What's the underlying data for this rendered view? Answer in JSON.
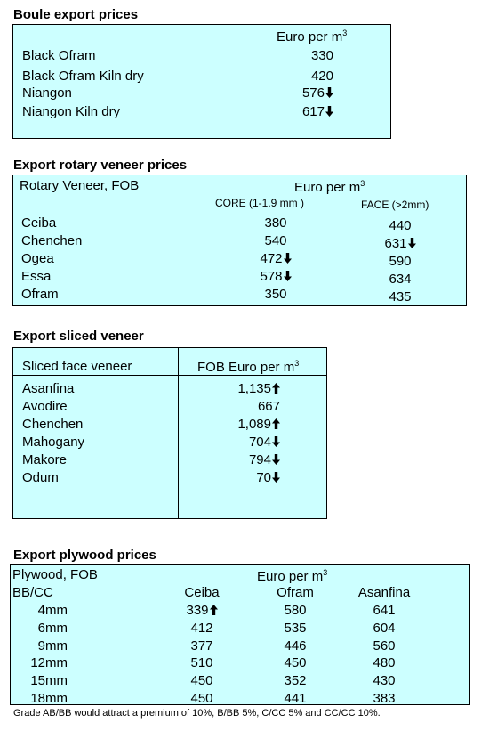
{
  "boule": {
    "title": "Boule export prices",
    "header": "Euro per m",
    "header_sup": "3",
    "rows": [
      {
        "name": "Black Ofram",
        "value": "330",
        "trend": ""
      },
      {
        "name": "Black Ofram  Kiln dry",
        "value": "420",
        "trend": ""
      },
      {
        "name": "Niangon",
        "value": "576",
        "trend": "down"
      },
      {
        "name": "Niangon Kiln dry",
        "value": "617",
        "trend": "down"
      }
    ]
  },
  "rotary": {
    "title": "Export rotary veneer prices",
    "label": "Rotary Veneer,  FOB",
    "header": "Euro  per m",
    "header_sup": "3",
    "col_core": "CORE (1-1.9 mm )",
    "col_face": "FACE (>2mm)",
    "rows": [
      {
        "name": "Ceiba",
        "core": "380",
        "core_trend": "",
        "face": "440",
        "face_trend": ""
      },
      {
        "name": "Chenchen",
        "core": "540",
        "core_trend": "",
        "face": "631",
        "face_trend": "down"
      },
      {
        "name": "Ogea",
        "core": "472",
        "core_trend": "down",
        "face": "590",
        "face_trend": ""
      },
      {
        "name": "Essa",
        "core": "578",
        "core_trend": "down",
        "face": "634",
        "face_trend": ""
      },
      {
        "name": "Ofram",
        "core": "350",
        "core_trend": "",
        "face": "435",
        "face_trend": ""
      }
    ]
  },
  "sliced": {
    "title": "Export sliced veneer",
    "col_name": "Sliced face veneer",
    "col_value": "FOB Euro per m",
    "col_value_sup": "3",
    "rows": [
      {
        "name": "Asanfina",
        "value": "1,135",
        "trend": "up"
      },
      {
        "name": "Avodire",
        "value": "667",
        "trend": ""
      },
      {
        "name": "Chenchen",
        "value": "1,089",
        "trend": "up"
      },
      {
        "name": "Mahogany",
        "value": "704",
        "trend": "down"
      },
      {
        "name": "Makore",
        "value": "794",
        "trend": "down"
      },
      {
        "name": "Odum",
        "value": "70",
        "trend": "down"
      }
    ]
  },
  "plywood": {
    "title": "Export plywood prices",
    "label": "Plywood, FOB",
    "grade": "BB/CC",
    "header": "Euro per m",
    "header_sup": "3",
    "cols": [
      "Ceiba",
      "Ofram",
      "Asanfina"
    ],
    "rows": [
      {
        "size": "4mm",
        "vals": [
          "339",
          "580",
          "641"
        ],
        "trends": [
          "up",
          "",
          ""
        ]
      },
      {
        "size": "6mm",
        "vals": [
          "412",
          "535",
          "604"
        ],
        "trends": [
          "",
          "",
          ""
        ]
      },
      {
        "size": "9mm",
        "vals": [
          "377",
          "446",
          "560"
        ],
        "trends": [
          "",
          "",
          ""
        ]
      },
      {
        "size": "12mm",
        "vals": [
          "510",
          "450",
          "480"
        ],
        "trends": [
          "",
          "",
          ""
        ]
      },
      {
        "size": "15mm",
        "vals": [
          "450",
          "352",
          "430"
        ],
        "trends": [
          "",
          "",
          ""
        ]
      },
      {
        "size": "18mm",
        "vals": [
          "450",
          "441",
          "383"
        ],
        "trends": [
          "",
          "",
          ""
        ]
      }
    ],
    "footnote": "Grade AB/BB would attract a premium of 10%, B/BB 5%, C/CC 5% and CC/CC 10%."
  }
}
